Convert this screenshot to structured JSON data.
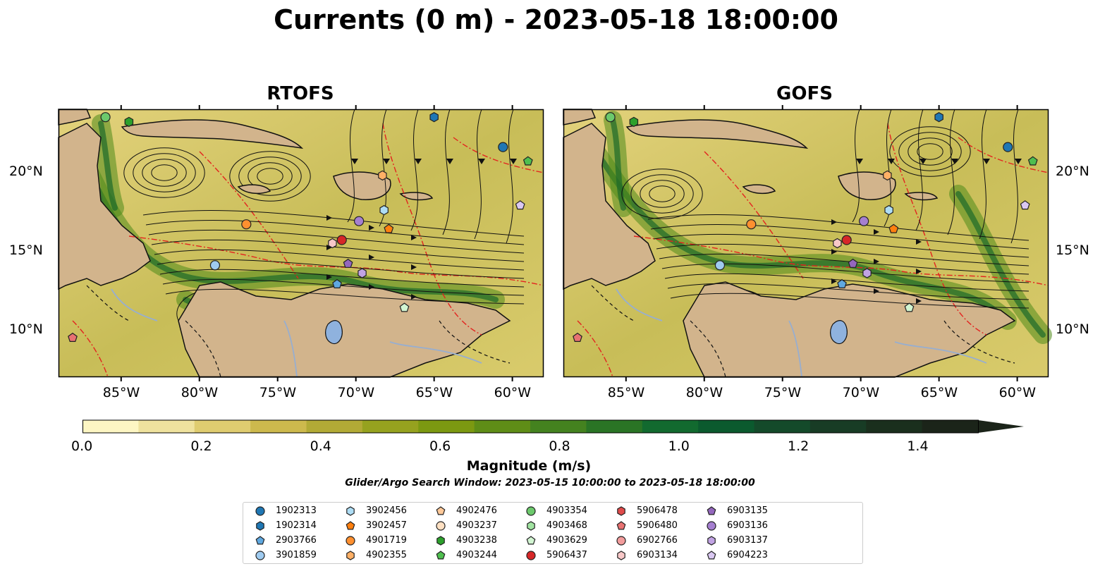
{
  "title": "Currents (0 m) - 2023-05-18 18:00:00",
  "panels": [
    {
      "title": "RTOFS"
    },
    {
      "title": "GOFS"
    }
  ],
  "lon_ticks": [
    "85°W",
    "80°W",
    "75°W",
    "70°W",
    "65°W",
    "60°W"
  ],
  "lat_ticks": [
    "20°N",
    "15°N",
    "10°N"
  ],
  "colorbar": {
    "label": "Magnitude (m/s)",
    "ticks": [
      "0.0",
      "0.2",
      "0.4",
      "0.6",
      "0.8",
      "1.0",
      "1.2",
      "1.4"
    ],
    "colors": [
      "#fdf6c3",
      "#efe29e",
      "#dfcc70",
      "#cdb94d",
      "#b2aa36",
      "#96a21f",
      "#7c9911",
      "#5f8d17",
      "#44821f",
      "#2a7425",
      "#126a2f",
      "#0b5a2e",
      "#144a2a",
      "#183c25",
      "#1a2f1d",
      "#1b2419"
    ]
  },
  "search_window": "Glider/Argo Search Window: 2023-05-15 10:00:00 to 2023-05-18 18:00:00",
  "legend": [
    {
      "id": "1902313",
      "marker": "circle",
      "color": "#1f77b4"
    },
    {
      "id": "1902314",
      "marker": "hexagon",
      "color": "#1f77b4"
    },
    {
      "id": "2903766",
      "marker": "pentagon",
      "color": "#5fa8e0"
    },
    {
      "id": "3901859",
      "marker": "circle",
      "color": "#9fcbf0"
    },
    {
      "id": "3902456",
      "marker": "hexagon",
      "color": "#aeddf5"
    },
    {
      "id": "3902457",
      "marker": "pentagon",
      "color": "#ff7f0e"
    },
    {
      "id": "4901719",
      "marker": "circle",
      "color": "#ff9030"
    },
    {
      "id": "4902355",
      "marker": "hexagon",
      "color": "#ffb066"
    },
    {
      "id": "4902476",
      "marker": "pentagon",
      "color": "#ffc999"
    },
    {
      "id": "4903237",
      "marker": "circle",
      "color": "#ffe0c2"
    },
    {
      "id": "4903238",
      "marker": "hexagon",
      "color": "#2ca02c"
    },
    {
      "id": "4903244",
      "marker": "pentagon",
      "color": "#4fbf4f"
    },
    {
      "id": "4903354",
      "marker": "circle",
      "color": "#6cc96c"
    },
    {
      "id": "4903468",
      "marker": "hexagon",
      "color": "#a1e3a1"
    },
    {
      "id": "4903629",
      "marker": "pentagon",
      "color": "#d2f5d2"
    },
    {
      "id": "5906437",
      "marker": "circle",
      "color": "#d62728"
    },
    {
      "id": "5906478",
      "marker": "hexagon",
      "color": "#e04b4b"
    },
    {
      "id": "5906480",
      "marker": "pentagon",
      "color": "#e87272"
    },
    {
      "id": "6902766",
      "marker": "circle",
      "color": "#f29c9c"
    },
    {
      "id": "6903134",
      "marker": "hexagon",
      "color": "#f8c8c8"
    },
    {
      "id": "6903135",
      "marker": "pentagon",
      "color": "#9467bd"
    },
    {
      "id": "6903136",
      "marker": "circle",
      "color": "#a57fd0"
    },
    {
      "id": "6903137",
      "marker": "hexagon",
      "color": "#c1a3e3"
    },
    {
      "id": "6904223",
      "marker": "pentagon",
      "color": "#dac8f2"
    }
  ],
  "chart_data": {
    "type": "map",
    "title": "Currents (0 m) - 2023-05-18 18:00:00",
    "lon_range": [
      -89,
      -58
    ],
    "lat_range": [
      7,
      24
    ],
    "colorbar_range": [
      0,
      1.5
    ],
    "colorbar_extend": "max",
    "panels": [
      "RTOFS",
      "GOFS"
    ],
    "platforms": [
      {
        "id": "1902313",
        "lon": -60.6,
        "lat": 21.6
      },
      {
        "id": "1902314",
        "lon": -65.0,
        "lat": 23.5
      },
      {
        "id": "2903766",
        "lon": -71.2,
        "lat": 12.9
      },
      {
        "id": "3901859",
        "lon": -79.0,
        "lat": 14.1
      },
      {
        "id": "3902456",
        "lon": -68.2,
        "lat": 17.6
      },
      {
        "id": "3902457",
        "lon": -67.9,
        "lat": 16.4
      },
      {
        "id": "4901719",
        "lon": -77.0,
        "lat": 16.7
      },
      {
        "id": "4902355",
        "lon": -68.3,
        "lat": 19.8
      },
      {
        "id": "4903238",
        "lon": -84.5,
        "lat": 23.2
      },
      {
        "id": "4903244",
        "lon": -59.0,
        "lat": 20.7
      },
      {
        "id": "4903354",
        "lon": -86.0,
        "lat": 23.5
      },
      {
        "id": "4903629",
        "lon": -66.9,
        "lat": 11.4
      },
      {
        "id": "5906437",
        "lon": -70.9,
        "lat": 15.7
      },
      {
        "id": "5906480",
        "lon": -88.1,
        "lat": 9.5
      },
      {
        "id": "6903134",
        "lon": -71.5,
        "lat": 15.5
      },
      {
        "id": "6903135",
        "lon": -70.5,
        "lat": 14.2
      },
      {
        "id": "6903136",
        "lon": -69.8,
        "lat": 16.9
      },
      {
        "id": "6903137",
        "lon": -69.6,
        "lat": 13.6
      },
      {
        "id": "6904223",
        "lon": -59.5,
        "lat": 17.9
      }
    ]
  }
}
